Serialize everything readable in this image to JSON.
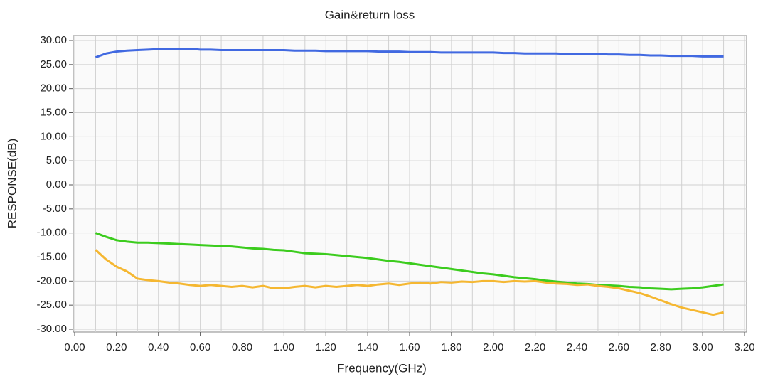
{
  "chart_data": {
    "type": "line",
    "title": "Gain&return loss",
    "xlabel": "Frequency(GHz)",
    "ylabel": "RESPONSE(dB)",
    "x": [
      0.1,
      0.15,
      0.2,
      0.25,
      0.3,
      0.35,
      0.4,
      0.45,
      0.5,
      0.55,
      0.6,
      0.65,
      0.7,
      0.75,
      0.8,
      0.85,
      0.9,
      0.95,
      1.0,
      1.05,
      1.1,
      1.15,
      1.2,
      1.25,
      1.3,
      1.35,
      1.4,
      1.45,
      1.5,
      1.55,
      1.6,
      1.65,
      1.7,
      1.75,
      1.8,
      1.85,
      1.9,
      1.95,
      2.0,
      2.05,
      2.1,
      2.15,
      2.2,
      2.25,
      2.3,
      2.35,
      2.4,
      2.45,
      2.5,
      2.55,
      2.6,
      2.65,
      2.7,
      2.75,
      2.8,
      2.85,
      2.9,
      2.95,
      3.0,
      3.05,
      3.1
    ],
    "series": [
      {
        "color": "#4169e1",
        "values": [
          26.5,
          27.3,
          27.7,
          27.9,
          28.0,
          28.1,
          28.2,
          28.3,
          28.2,
          28.3,
          28.1,
          28.1,
          28.0,
          28.0,
          28.0,
          28.0,
          28.0,
          28.0,
          28.0,
          27.9,
          27.9,
          27.9,
          27.8,
          27.8,
          27.8,
          27.8,
          27.8,
          27.7,
          27.7,
          27.7,
          27.6,
          27.6,
          27.6,
          27.5,
          27.5,
          27.5,
          27.5,
          27.5,
          27.5,
          27.4,
          27.4,
          27.3,
          27.3,
          27.3,
          27.3,
          27.2,
          27.2,
          27.2,
          27.2,
          27.1,
          27.1,
          27.0,
          27.0,
          26.9,
          26.9,
          26.8,
          26.8,
          26.8,
          26.7,
          26.7,
          26.7
        ]
      },
      {
        "color": "#3ccc1e",
        "values": [
          -10,
          -10.8,
          -11.5,
          -11.8,
          -12,
          -12,
          -12.1,
          -12.2,
          -12.3,
          -12.4,
          -12.5,
          -12.6,
          -12.7,
          -12.8,
          -13,
          -13.2,
          -13.3,
          -13.5,
          -13.6,
          -13.9,
          -14.2,
          -14.3,
          -14.4,
          -14.6,
          -14.8,
          -15,
          -15.2,
          -15.5,
          -15.8,
          -16,
          -16.3,
          -16.6,
          -16.9,
          -17.2,
          -17.5,
          -17.8,
          -18.1,
          -18.4,
          -18.6,
          -18.9,
          -19.2,
          -19.4,
          -19.6,
          -19.9,
          -20.1,
          -20.3,
          -20.5,
          -20.6,
          -20.8,
          -20.9,
          -21,
          -21.2,
          -21.3,
          -21.5,
          -21.6,
          -21.7,
          -21.6,
          -21.5,
          -21.3,
          -21,
          -20.7
        ]
      },
      {
        "color": "#f5b731",
        "values": [
          -13.5,
          -15.5,
          -17,
          -18,
          -19.5,
          -19.8,
          -20,
          -20.3,
          -20.5,
          -20.8,
          -21,
          -20.8,
          -21,
          -21.2,
          -21,
          -21.3,
          -21,
          -21.5,
          -21.5,
          -21.2,
          -21,
          -21.3,
          -21,
          -21.2,
          -21,
          -20.8,
          -21,
          -20.7,
          -20.5,
          -20.8,
          -20.5,
          -20.3,
          -20.5,
          -20.2,
          -20.3,
          -20.1,
          -20.2,
          -20,
          -20,
          -20.2,
          -20,
          -20.1,
          -20,
          -20.3,
          -20.5,
          -20.6,
          -20.8,
          -20.7,
          -21,
          -21.2,
          -21.5,
          -22,
          -22.5,
          -23.2,
          -24,
          -24.8,
          -25.5,
          -26,
          -26.5,
          -27,
          -26.5
        ]
      }
    ],
    "xlim": [
      0,
      3.2
    ],
    "xticks": [
      {
        "value": 0,
        "label": "0.00"
      },
      {
        "value": 0.2,
        "label": "0.20"
      },
      {
        "value": 0.4,
        "label": "0.40"
      },
      {
        "value": 0.6,
        "label": "0.60"
      },
      {
        "value": 0.8,
        "label": "0.80"
      },
      {
        "value": 1.0,
        "label": "1.00"
      },
      {
        "value": 1.2,
        "label": "1.20"
      },
      {
        "value": 1.4,
        "label": "1.40"
      },
      {
        "value": 1.6,
        "label": "1.60"
      },
      {
        "value": 1.8,
        "label": "1.80"
      },
      {
        "value": 2.0,
        "label": "2.00"
      },
      {
        "value": 2.2,
        "label": "2.20"
      },
      {
        "value": 2.4,
        "label": "2.40"
      },
      {
        "value": 2.6,
        "label": "2.60"
      },
      {
        "value": 2.8,
        "label": "2.80"
      },
      {
        "value": 3.0,
        "label": "3.00"
      },
      {
        "value": 3.2,
        "label": "3.20"
      }
    ],
    "xminorticks": [
      0.1,
      0.3,
      0.5,
      0.7,
      0.9,
      1.1,
      1.3,
      1.5,
      1.7,
      1.9,
      2.1,
      2.3,
      2.5,
      2.7,
      2.9,
      3.1
    ],
    "ylim": [
      -30,
      30
    ],
    "yticks": [
      {
        "value": 30,
        "label": "30.00"
      },
      {
        "value": 25,
        "label": "25.00"
      },
      {
        "value": 20,
        "label": "20.00"
      },
      {
        "value": 15,
        "label": "15.00"
      },
      {
        "value": 10,
        "label": "10.00"
      },
      {
        "value": 5,
        "label": "5.00"
      },
      {
        "value": 0,
        "label": "0.00"
      },
      {
        "value": -5,
        "label": "-5.00"
      },
      {
        "value": -10,
        "label": "-10.00"
      },
      {
        "value": -15,
        "label": "-15.00"
      },
      {
        "value": -20,
        "label": "-20.00"
      },
      {
        "value": -25,
        "label": "-25.00"
      },
      {
        "value": -30,
        "label": "-30.00"
      }
    ],
    "grid": true
  }
}
